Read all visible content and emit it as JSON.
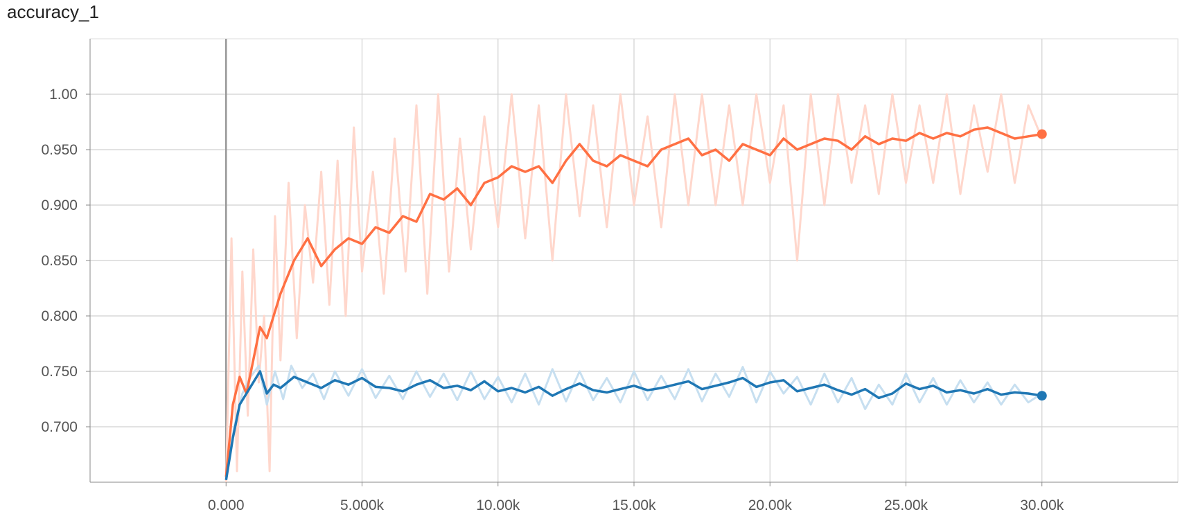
{
  "chart_data": {
    "type": "line",
    "title": "accuracy_1",
    "xlabel": "",
    "ylabel": "",
    "xlim": [
      -5000,
      35000
    ],
    "ylim": [
      0.65,
      1.05
    ],
    "x_ticks": [
      0,
      5000,
      10000,
      15000,
      20000,
      25000,
      30000
    ],
    "x_tick_labels": [
      "0.000",
      "5.000k",
      "10.00k",
      "15.00k",
      "20.00k",
      "25.00k",
      "30.00k"
    ],
    "y_ticks": [
      0.7,
      0.75,
      0.8,
      0.85,
      0.9,
      0.95,
      1.0
    ],
    "y_tick_labels": [
      "0.700",
      "0.750",
      "0.800",
      "0.850",
      "0.900",
      "0.950",
      "1.00"
    ],
    "grid": true,
    "legend": "none",
    "series": [
      {
        "color": "#ff7043",
        "raw_color": "#ffd7cc",
        "smoothed_x": [
          0,
          250,
          500,
          750,
          1000,
          1250,
          1500,
          1750,
          2000,
          2500,
          3000,
          3500,
          4000,
          4500,
          5000,
          5500,
          6000,
          6500,
          7000,
          7500,
          8000,
          8500,
          9000,
          9500,
          10000,
          10500,
          11000,
          11500,
          12000,
          12500,
          13000,
          13500,
          14000,
          14500,
          15000,
          15500,
          16000,
          16500,
          17000,
          17500,
          18000,
          18500,
          19000,
          19500,
          20000,
          20500,
          21000,
          21500,
          22000,
          22500,
          23000,
          23500,
          24000,
          24500,
          25000,
          25500,
          26000,
          26500,
          27000,
          27500,
          28000,
          28500,
          29000,
          29500,
          30000
        ],
        "smoothed_y": [
          0.655,
          0.72,
          0.745,
          0.73,
          0.76,
          0.79,
          0.78,
          0.8,
          0.82,
          0.85,
          0.87,
          0.845,
          0.86,
          0.87,
          0.865,
          0.88,
          0.875,
          0.89,
          0.885,
          0.91,
          0.905,
          0.915,
          0.9,
          0.92,
          0.925,
          0.935,
          0.93,
          0.935,
          0.92,
          0.94,
          0.955,
          0.94,
          0.935,
          0.945,
          0.94,
          0.935,
          0.95,
          0.955,
          0.96,
          0.945,
          0.95,
          0.94,
          0.955,
          0.95,
          0.945,
          0.96,
          0.95,
          0.955,
          0.96,
          0.958,
          0.95,
          0.962,
          0.955,
          0.96,
          0.958,
          0.965,
          0.96,
          0.965,
          0.962,
          0.968,
          0.97,
          0.965,
          0.96,
          0.962,
          0.964
        ],
        "raw_x": [
          0,
          200,
          400,
          600,
          800,
          1000,
          1200,
          1400,
          1600,
          1800,
          2000,
          2300,
          2600,
          2900,
          3200,
          3500,
          3800,
          4100,
          4400,
          4700,
          5000,
          5400,
          5800,
          6200,
          6600,
          7000,
          7400,
          7800,
          8200,
          8600,
          9000,
          9500,
          10000,
          10500,
          11000,
          11500,
          12000,
          12500,
          13000,
          13500,
          14000,
          14500,
          15000,
          15500,
          16000,
          16500,
          17000,
          17500,
          18000,
          18500,
          19000,
          19500,
          20000,
          20500,
          21000,
          21500,
          22000,
          22500,
          23000,
          23500,
          24000,
          24500,
          25000,
          25500,
          26000,
          26500,
          27000,
          27500,
          28000,
          28500,
          29000,
          29500,
          30000
        ],
        "raw_y": [
          0.65,
          0.87,
          0.66,
          0.84,
          0.71,
          0.86,
          0.74,
          0.8,
          0.66,
          0.89,
          0.76,
          0.92,
          0.78,
          0.9,
          0.83,
          0.93,
          0.81,
          0.94,
          0.8,
          0.97,
          0.84,
          0.93,
          0.82,
          0.96,
          0.84,
          0.99,
          0.82,
          1.0,
          0.84,
          0.96,
          0.86,
          0.98,
          0.88,
          1.0,
          0.87,
          0.99,
          0.85,
          1.0,
          0.89,
          0.99,
          0.88,
          1.0,
          0.9,
          0.98,
          0.88,
          1.0,
          0.9,
          1.0,
          0.9,
          0.99,
          0.9,
          1.0,
          0.92,
          0.99,
          0.85,
          1.0,
          0.9,
          1.0,
          0.92,
          0.99,
          0.91,
          1.0,
          0.92,
          0.99,
          0.92,
          1.0,
          0.91,
          0.99,
          0.93,
          1.0,
          0.92,
          0.99,
          0.96
        ]
      },
      {
        "color": "#1f77b4",
        "raw_color": "#c7dff0",
        "smoothed_x": [
          0,
          250,
          500,
          750,
          1000,
          1250,
          1500,
          1750,
          2000,
          2500,
          3000,
          3500,
          4000,
          4500,
          5000,
          5500,
          6000,
          6500,
          7000,
          7500,
          8000,
          8500,
          9000,
          9500,
          10000,
          10500,
          11000,
          11500,
          12000,
          12500,
          13000,
          13500,
          14000,
          14500,
          15000,
          15500,
          16000,
          16500,
          17000,
          17500,
          18000,
          18500,
          19000,
          19500,
          20000,
          20500,
          21000,
          21500,
          22000,
          22500,
          23000,
          23500,
          24000,
          24500,
          25000,
          25500,
          26000,
          26500,
          27000,
          27500,
          28000,
          28500,
          29000,
          29500,
          30000
        ],
        "smoothed_y": [
          0.652,
          0.69,
          0.72,
          0.73,
          0.74,
          0.75,
          0.73,
          0.738,
          0.735,
          0.745,
          0.74,
          0.735,
          0.742,
          0.738,
          0.744,
          0.736,
          0.735,
          0.732,
          0.738,
          0.742,
          0.735,
          0.737,
          0.733,
          0.741,
          0.732,
          0.735,
          0.731,
          0.736,
          0.728,
          0.734,
          0.739,
          0.733,
          0.731,
          0.734,
          0.737,
          0.733,
          0.735,
          0.738,
          0.741,
          0.734,
          0.737,
          0.74,
          0.744,
          0.736,
          0.74,
          0.742,
          0.732,
          0.735,
          0.738,
          0.733,
          0.729,
          0.734,
          0.726,
          0.73,
          0.739,
          0.734,
          0.737,
          0.731,
          0.733,
          0.73,
          0.734,
          0.729,
          0.731,
          0.73,
          0.728
        ],
        "raw_x": [
          0,
          300,
          600,
          900,
          1200,
          1500,
          1800,
          2100,
          2400,
          2800,
          3200,
          3600,
          4000,
          4500,
          5000,
          5500,
          6000,
          6500,
          7000,
          7500,
          8000,
          8500,
          9000,
          9500,
          10000,
          10500,
          11000,
          11500,
          12000,
          12500,
          13000,
          13500,
          14000,
          14500,
          15000,
          15500,
          16000,
          16500,
          17000,
          17500,
          18000,
          18500,
          19000,
          19500,
          20000,
          20500,
          21000,
          21500,
          22000,
          22500,
          23000,
          23500,
          24000,
          24500,
          25000,
          25500,
          26000,
          26500,
          27000,
          27500,
          28000,
          28500,
          29000,
          29500,
          30000
        ],
        "raw_y": [
          0.652,
          0.7,
          0.73,
          0.745,
          0.755,
          0.72,
          0.75,
          0.725,
          0.755,
          0.735,
          0.748,
          0.725,
          0.75,
          0.728,
          0.752,
          0.726,
          0.746,
          0.725,
          0.75,
          0.727,
          0.748,
          0.724,
          0.75,
          0.725,
          0.745,
          0.722,
          0.748,
          0.72,
          0.752,
          0.723,
          0.75,
          0.724,
          0.744,
          0.722,
          0.75,
          0.724,
          0.746,
          0.725,
          0.752,
          0.723,
          0.748,
          0.727,
          0.754,
          0.722,
          0.75,
          0.73,
          0.745,
          0.72,
          0.748,
          0.722,
          0.744,
          0.716,
          0.738,
          0.72,
          0.748,
          0.722,
          0.744,
          0.72,
          0.742,
          0.722,
          0.74,
          0.72,
          0.738,
          0.722,
          0.73
        ]
      }
    ]
  }
}
